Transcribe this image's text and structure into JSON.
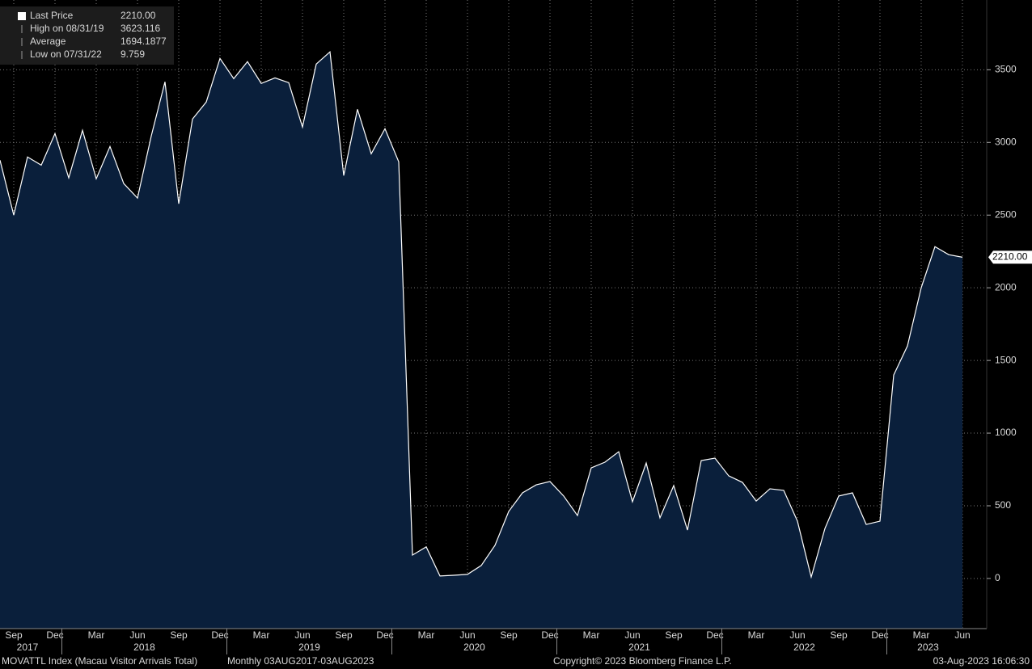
{
  "chart_data": {
    "type": "area",
    "stats": [
      {
        "name": "Last Price",
        "value": {
          "value": 2210,
          "label": "2210.00"
        }
      },
      {
        "name": "High on 08/31/19",
        "value": 3623.116
      },
      {
        "name": "Average",
        "value": 1694.1877
      },
      {
        "name": "Low on 07/31/22",
        "value": 9.759
      }
    ],
    "x": [
      "2017-08",
      "2017-09",
      "2017-10",
      "2017-11",
      "2017-12",
      "2018-01",
      "2018-02",
      "2018-03",
      "2018-04",
      "2018-05",
      "2018-06",
      "2018-07",
      "2018-08",
      "2018-09",
      "2018-10",
      "2018-11",
      "2018-12",
      "2019-01",
      "2019-02",
      "2019-03",
      "2019-04",
      "2019-05",
      "2019-06",
      "2019-07",
      "2019-08",
      "2019-09",
      "2019-10",
      "2019-11",
      "2019-12",
      "2020-01",
      "2020-02",
      "2020-03",
      "2020-04",
      "2020-05",
      "2020-06",
      "2020-07",
      "2020-08",
      "2020-09",
      "2020-10",
      "2020-11",
      "2020-12",
      "2021-01",
      "2021-02",
      "2021-03",
      "2021-04",
      "2021-05",
      "2021-06",
      "2021-07",
      "2021-08",
      "2021-09",
      "2021-10",
      "2021-11",
      "2021-12",
      "2022-01",
      "2022-02",
      "2022-03",
      "2022-04",
      "2022-05",
      "2022-06",
      "2022-07",
      "2022-08",
      "2022-09",
      "2022-10",
      "2022-11",
      "2022-12",
      "2023-01",
      "2023-02",
      "2023-03",
      "2023-04",
      "2023-05",
      "2023-06"
    ],
    "series": [
      {
        "name": "Last Price",
        "color": "#ffffff",
        "fill": "#0a1f3b",
        "values": [
          2878,
          2500,
          2900,
          2844,
          3061,
          2756,
          3083,
          2750,
          2972,
          2717,
          2617,
          3044,
          3417,
          2578,
          3161,
          3278,
          3578,
          3439,
          3556,
          3406,
          3444,
          3411,
          3106,
          3539,
          3623,
          2772,
          3228,
          2922,
          3094,
          2867,
          161,
          217,
          17,
          22,
          28,
          89,
          228,
          461,
          589,
          644,
          667,
          567,
          433,
          761,
          800,
          872,
          528,
          794,
          417,
          639,
          333,
          811,
          828,
          706,
          661,
          533,
          617,
          606,
          394,
          10,
          344,
          567,
          589,
          372,
          394,
          1400,
          1600,
          2000,
          2283,
          2228,
          2210
        ]
      }
    ],
    "ylim": [
      -345,
      3980
    ],
    "yticks": [
      0,
      500,
      1000,
      1500,
      2000,
      2500,
      3000,
      3500
    ],
    "xticks": [
      {
        "value": "2017-09",
        "label": "Sep"
      },
      {
        "value": "2017-12",
        "label": "Dec"
      },
      {
        "value": "2018-03",
        "label": "Mar"
      },
      {
        "value": "2018-06",
        "label": "Jun"
      },
      {
        "value": "2018-09",
        "label": "Sep"
      },
      {
        "value": "2018-12",
        "label": "Dec"
      },
      {
        "value": "2019-03",
        "label": "Mar"
      },
      {
        "value": "2019-06",
        "label": "Jun"
      },
      {
        "value": "2019-09",
        "label": "Sep"
      },
      {
        "value": "2019-12",
        "label": "Dec"
      },
      {
        "value": "2020-03",
        "label": "Mar"
      },
      {
        "value": "2020-06",
        "label": "Jun"
      },
      {
        "value": "2020-09",
        "label": "Sep"
      },
      {
        "value": "2020-12",
        "label": "Dec"
      },
      {
        "value": "2021-03",
        "label": "Mar"
      },
      {
        "value": "2021-06",
        "label": "Jun"
      },
      {
        "value": "2021-09",
        "label": "Sep"
      },
      {
        "value": "2021-12",
        "label": "Dec"
      },
      {
        "value": "2022-03",
        "label": "Mar"
      },
      {
        "value": "2022-06",
        "label": "Jun"
      },
      {
        "value": "2022-09",
        "label": "Sep"
      },
      {
        "value": "2022-12",
        "label": "Dec"
      },
      {
        "value": "2023-03",
        "label": "Mar"
      },
      {
        "value": "2023-06",
        "label": "Jun"
      }
    ],
    "year_labels": [
      2017,
      2018,
      2019,
      2020,
      2021,
      2022,
      2023
    ],
    "grid": true,
    "footer": {
      "security": "MOVATTL Index (Macau Visitor Arrivals Total)",
      "period": "Monthly 03AUG2017-03AUG2023",
      "copyright": "Copyright© 2023 Bloomberg Finance L.P.",
      "timestamp": "03-Aug-2023 16:06:30"
    }
  }
}
